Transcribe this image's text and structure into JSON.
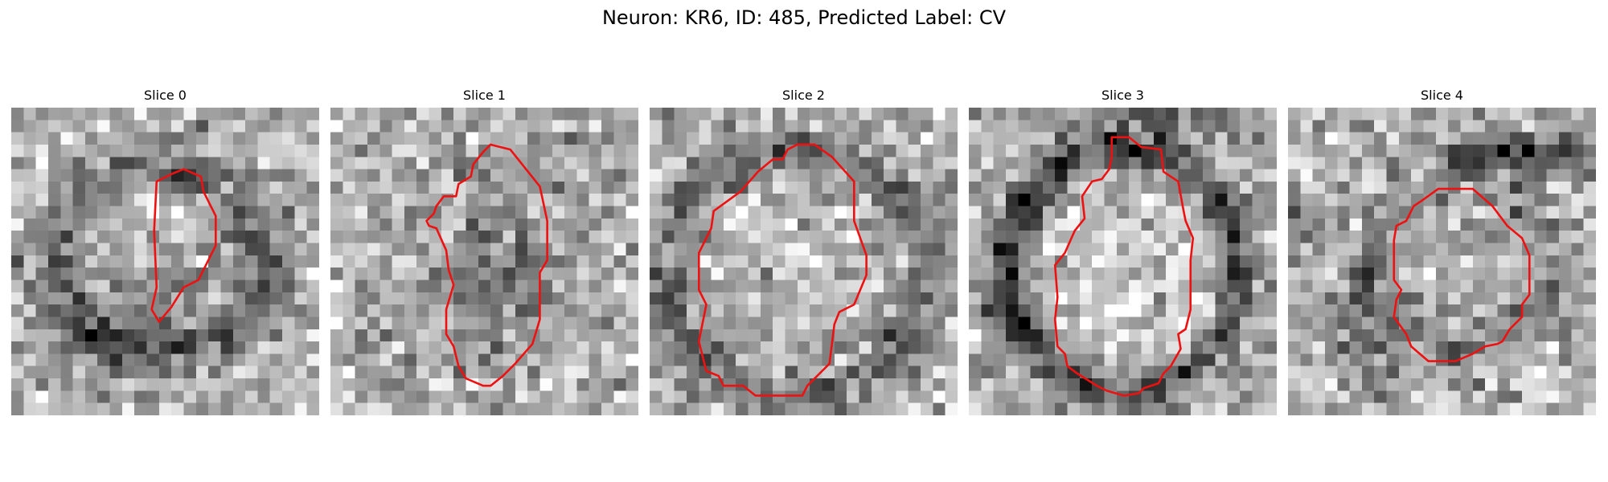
{
  "figure": {
    "title": "Neuron: KR6, ID: 485, Predicted Label: CV"
  },
  "colors": {
    "contour": "#ee1111",
    "background": "#ffffff"
  },
  "panels": [
    {
      "title": "Slice 0",
      "seed": 11,
      "mode": "slice0",
      "contour": [
        [
          7,
          2.5
        ],
        [
          7.7,
          2.8
        ],
        [
          7.8,
          3.4
        ],
        [
          8.3,
          4.4
        ],
        [
          8.3,
          5.6
        ],
        [
          7.6,
          7.0
        ],
        [
          7.0,
          7.3
        ],
        [
          6.5,
          8.1
        ],
        [
          6.0,
          8.7
        ],
        [
          5.7,
          8.2
        ],
        [
          5.9,
          7.3
        ],
        [
          5.8,
          5.0
        ],
        [
          5.9,
          3.0
        ],
        [
          6.5,
          2.7
        ]
      ]
    },
    {
      "title": "Slice 1",
      "seed": 23,
      "mode": "slice1",
      "contour": [
        [
          6.5,
          1.5
        ],
        [
          7.3,
          1.7
        ],
        [
          8.5,
          3.2
        ],
        [
          8.8,
          4.6
        ],
        [
          8.8,
          6.2
        ],
        [
          8.5,
          6.7
        ],
        [
          8.5,
          8.6
        ],
        [
          8.2,
          9.6
        ],
        [
          7.5,
          10.4
        ],
        [
          7.0,
          10.9
        ],
        [
          6.5,
          11.3
        ],
        [
          6.2,
          11.3
        ],
        [
          5.5,
          11.0
        ],
        [
          5.2,
          10.5
        ],
        [
          5.0,
          9.7
        ],
        [
          4.7,
          9.2
        ],
        [
          4.7,
          8.2
        ],
        [
          5.0,
          7.2
        ],
        [
          4.8,
          6.6
        ],
        [
          4.7,
          5.8
        ],
        [
          4.3,
          4.9
        ],
        [
          4.0,
          4.8
        ],
        [
          3.9,
          4.6
        ],
        [
          4.2,
          4.3
        ],
        [
          4.3,
          4.0
        ],
        [
          4.6,
          3.6
        ],
        [
          5.1,
          3.6
        ],
        [
          5.2,
          3.1
        ],
        [
          5.7,
          2.8
        ],
        [
          5.8,
          2.3
        ],
        [
          6.2,
          1.8
        ]
      ]
    },
    {
      "title": "Slice 2",
      "seed": 37,
      "mode": "slice2",
      "contour": [
        [
          6.0,
          1.5
        ],
        [
          6.7,
          1.5
        ],
        [
          7.4,
          2.0
        ],
        [
          8.3,
          3.0
        ],
        [
          8.3,
          4.6
        ],
        [
          8.8,
          6.0
        ],
        [
          8.8,
          6.8
        ],
        [
          8.3,
          8.0
        ],
        [
          7.7,
          8.3
        ],
        [
          7.5,
          8.8
        ],
        [
          7.3,
          10.4
        ],
        [
          6.7,
          11.0
        ],
        [
          6.4,
          11.3
        ],
        [
          6.2,
          11.7
        ],
        [
          4.3,
          11.7
        ],
        [
          3.8,
          11.3
        ],
        [
          3.0,
          11.3
        ],
        [
          2.8,
          10.9
        ],
        [
          2.3,
          10.7
        ],
        [
          2.2,
          10.3
        ],
        [
          2.0,
          9.5
        ],
        [
          2.3,
          8.0
        ],
        [
          2.0,
          7.4
        ],
        [
          2.0,
          5.9
        ],
        [
          2.5,
          4.9
        ],
        [
          2.6,
          4.2
        ],
        [
          3.7,
          3.4
        ],
        [
          4.4,
          2.6
        ],
        [
          5.0,
          2.1
        ],
        [
          5.4,
          2.1
        ],
        [
          5.6,
          1.7
        ]
      ]
    },
    {
      "title": "Slice 3",
      "seed": 53,
      "mode": "slice3",
      "contour": [
        [
          5.8,
          1.2
        ],
        [
          6.5,
          1.2
        ],
        [
          7.0,
          1.6
        ],
        [
          7.8,
          1.7
        ],
        [
          7.9,
          2.6
        ],
        [
          8.5,
          3.0
        ],
        [
          8.7,
          4.1
        ],
        [
          8.8,
          4.6
        ],
        [
          9.1,
          5.3
        ],
        [
          9.0,
          6.2
        ],
        [
          9.0,
          8.2
        ],
        [
          8.8,
          9.0
        ],
        [
          8.5,
          9.2
        ],
        [
          8.6,
          9.8
        ],
        [
          8.2,
          10.5
        ],
        [
          7.9,
          10.8
        ],
        [
          7.7,
          11.2
        ],
        [
          7.1,
          11.4
        ],
        [
          6.9,
          11.6
        ],
        [
          6.3,
          11.7
        ],
        [
          5.6,
          11.5
        ],
        [
          5.2,
          11.3
        ],
        [
          4.4,
          10.8
        ],
        [
          4.0,
          10.5
        ],
        [
          3.9,
          10.0
        ],
        [
          3.6,
          9.7
        ],
        [
          3.5,
          8.6
        ],
        [
          3.6,
          7.7
        ],
        [
          3.5,
          6.4
        ],
        [
          3.9,
          5.9
        ],
        [
          4.3,
          5.0
        ],
        [
          4.7,
          4.5
        ],
        [
          4.6,
          3.6
        ],
        [
          5.0,
          3.0
        ],
        [
          5.4,
          2.9
        ],
        [
          5.7,
          2.5
        ],
        [
          5.8,
          2.0
        ]
      ]
    },
    {
      "title": "Slice 4",
      "seed": 71,
      "mode": "slice4",
      "contour": [
        [
          6.1,
          3.3
        ],
        [
          7.5,
          3.3
        ],
        [
          8.3,
          4.0
        ],
        [
          8.9,
          4.8
        ],
        [
          9.5,
          5.3
        ],
        [
          9.8,
          6.0
        ],
        [
          9.8,
          7.6
        ],
        [
          9.5,
          8.0
        ],
        [
          9.5,
          8.5
        ],
        [
          9.0,
          9.0
        ],
        [
          8.7,
          9.5
        ],
        [
          8.5,
          9.6
        ],
        [
          8.0,
          9.7
        ],
        [
          7.5,
          10.0
        ],
        [
          6.8,
          10.3
        ],
        [
          5.7,
          10.3
        ],
        [
          5.0,
          9.7
        ],
        [
          4.8,
          9.2
        ],
        [
          4.3,
          8.5
        ],
        [
          4.4,
          7.8
        ],
        [
          4.6,
          7.4
        ],
        [
          4.3,
          7.0
        ],
        [
          4.3,
          5.4
        ],
        [
          4.4,
          4.8
        ],
        [
          4.8,
          4.6
        ],
        [
          5.1,
          4.0
        ],
        [
          5.4,
          3.8
        ]
      ]
    }
  ]
}
